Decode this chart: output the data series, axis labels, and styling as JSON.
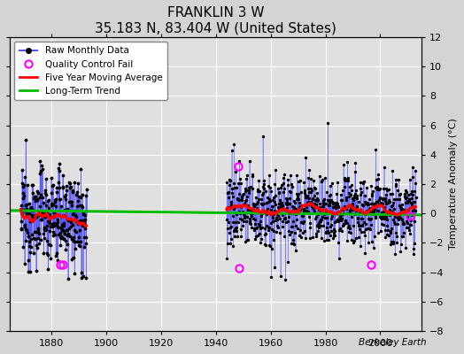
{
  "title": "FRANKLIN 3 W",
  "subtitle": "35.183 N, 83.404 W (United States)",
  "ylabel": "Temperature Anomaly (°C)",
  "watermark": "Berkeley Earth",
  "ylim": [
    -8,
    12
  ],
  "yticks": [
    -8,
    -6,
    -4,
    -2,
    0,
    2,
    4,
    6,
    8,
    10,
    12
  ],
  "xlim": [
    1865,
    2015
  ],
  "xticks": [
    1880,
    1900,
    1920,
    1940,
    1960,
    1980,
    2000
  ],
  "bg_color": "#d4d4d4",
  "plot_bg_color": "#e0e0e0",
  "grid_color": "white",
  "raw_line_color": "#5555ff",
  "raw_dot_color": "black",
  "moving_avg_color": "red",
  "trend_color": "#00bb00",
  "qc_fail_color": "magenta",
  "title_fontsize": 11,
  "subtitle_fontsize": 9,
  "label_fontsize": 8,
  "tick_fontsize": 8,
  "early_start": 1869,
  "early_end": 1893,
  "modern_start": 1944,
  "modern_end": 2013,
  "trend_x": [
    1865,
    2015
  ],
  "trend_y": [
    0.2,
    -0.1
  ],
  "qc_fail_points": [
    [
      1883.5,
      -3.5
    ],
    [
      1884.2,
      -3.5
    ],
    [
      1948.5,
      -3.7
    ],
    [
      1948.3,
      3.2
    ],
    [
      1996.5,
      -3.5
    ],
    [
      2010.8,
      -0.2
    ]
  ]
}
